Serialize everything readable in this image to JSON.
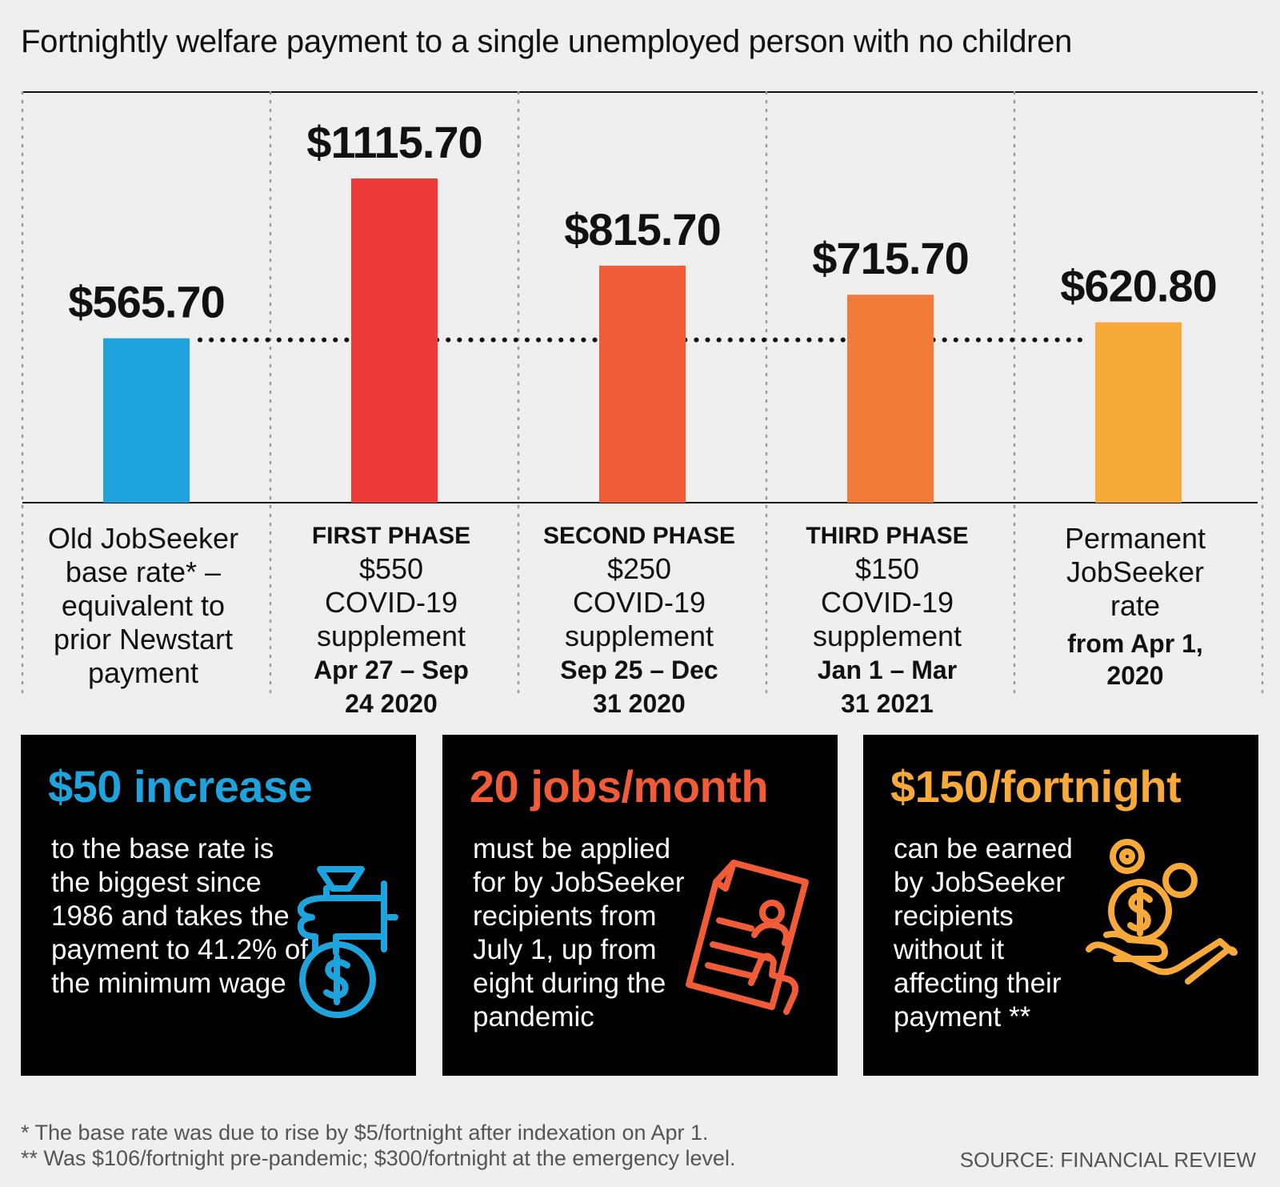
{
  "title": "Fortnightly welfare payment to a single unemployed person with no children",
  "chart_data": {
    "type": "bar",
    "categories": [
      "Old JobSeeker base rate",
      "FIRST PHASE",
      "SECOND PHASE",
      "THIRD PHASE",
      "Permanent JobSeeker rate"
    ],
    "values": [
      565.7,
      1115.7,
      815.7,
      715.7,
      620.8
    ],
    "value_labels": [
      "$565.70",
      "$1115.70",
      "$815.70",
      "$715.70",
      "$620.80"
    ],
    "colors": [
      "#1ea3dc",
      "#ec3b36",
      "#f05c38",
      "#f27b3a",
      "#f7a93a"
    ],
    "baseline_value": 565.7,
    "grid": false
  },
  "labels": [
    {
      "phase": "",
      "desc": "Old JobSeeker base rate* – equivalent to prior Newstart payment",
      "dates": ""
    },
    {
      "phase": "FIRST PHASE",
      "desc": "$550 COVID-19 supplement",
      "dates": "Apr 27 – Sep 24 2020"
    },
    {
      "phase": "SECOND PHASE",
      "desc": "$250 COVID-19 supplement",
      "dates": "Sep 25 – Dec 31 2020"
    },
    {
      "phase": "THIRD PHASE",
      "desc": "$150 COVID-19 supplement",
      "dates": "Jan 1 – Mar 31 2021"
    },
    {
      "phase": "",
      "desc": "Permanent JobSeeker rate",
      "dates": "from Apr 1, 2020"
    }
  ],
  "boxes": [
    {
      "head": "$50 increase",
      "color": "#1ea3dc",
      "body": "to the base rate is the biggest since 1986 and takes the payment to 41.2% of the minimum wage",
      "icon": "money-bag-hand-icon"
    },
    {
      "head": "20 jobs/month",
      "color": "#f05c38",
      "body": "must be applied for by JobSeeker recipients from July 1, up from eight during the pandemic",
      "icon": "job-application-document-icon"
    },
    {
      "head": "$150/fortnight",
      "color": "#f7a93a",
      "body": "can be earned by JobSeeker recipients without it affecting their payment **",
      "icon": "coins-in-hand-icon"
    }
  ],
  "footnotes": [
    "* The base rate was due to rise by $5/fortnight after indexation on Apr 1.",
    "** Was $106/fortnight pre-pandemic; $300/fortnight at the emergency level."
  ],
  "source": "SOURCE: FINANCIAL REVIEW"
}
